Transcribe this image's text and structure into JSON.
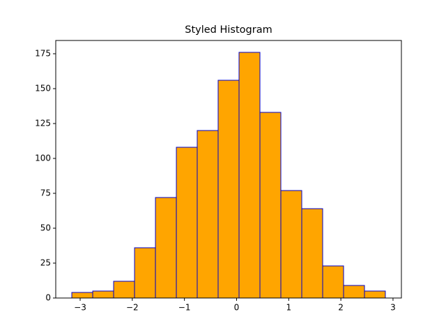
{
  "chart_data": {
    "type": "histogram",
    "title": "Styled Histogram",
    "bins": [
      -3.16,
      -2.759,
      -2.358,
      -1.957,
      -1.556,
      -1.155,
      -0.755,
      -0.354,
      0.047,
      0.448,
      0.849,
      1.25,
      1.651,
      2.052,
      2.453,
      2.853
    ],
    "values": [
      4,
      5,
      12,
      36,
      72,
      108,
      120,
      156,
      176,
      133,
      77,
      64,
      23,
      9,
      5
    ],
    "color": "orange",
    "edgecolor": "#0000cc",
    "xlim": [
      -3.468,
      3.161
    ],
    "xticks": [
      {
        "value": -3,
        "label": "−3"
      },
      {
        "value": -2,
        "label": "−2"
      },
      {
        "value": -1,
        "label": "−1"
      },
      0,
      1,
      2,
      3
    ],
    "ylim": [
      0,
      184.5
    ],
    "yticks": [
      0,
      25,
      50,
      75,
      100,
      125,
      150,
      175
    ],
    "grid": false
  }
}
